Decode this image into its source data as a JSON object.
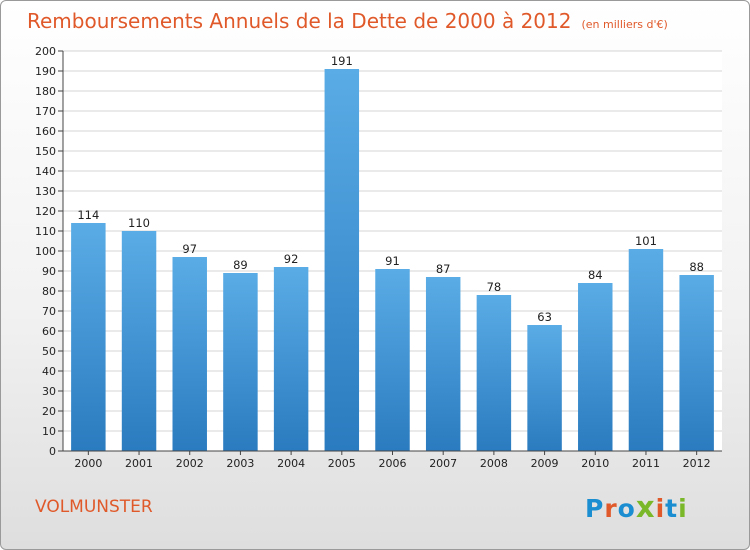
{
  "header": {
    "title": "Remboursements Annuels de la Dette de 2000 à 2012",
    "unit": "(en milliers d'€)"
  },
  "footer": {
    "commune": "VOLMUNSTER",
    "logo_text": "Proxiti"
  },
  "colors": {
    "title": "#e0592a",
    "bar_top": "#5aace6",
    "bar_bottom": "#2a7bbf",
    "logo_letters": [
      "#1a8ed0",
      "#e0592a",
      "#1a8ed0",
      "#7ab829",
      "#e0592a",
      "#1a8ed0",
      "#7ab829"
    ]
  },
  "chart_data": {
    "type": "bar",
    "title": "Remboursements Annuels de la Dette de 2000 à 2012",
    "subtitle": "(en milliers d'€)",
    "categories": [
      "2000",
      "2001",
      "2002",
      "2003",
      "2004",
      "2005",
      "2006",
      "2007",
      "2008",
      "2009",
      "2010",
      "2011",
      "2012"
    ],
    "values": [
      114,
      110,
      97,
      89,
      92,
      191,
      91,
      87,
      78,
      63,
      84,
      101,
      88
    ],
    "xlabel": "",
    "ylabel": "",
    "ylim": [
      0,
      200
    ],
    "ytick_step": 10,
    "grid": true,
    "legend": "none"
  }
}
